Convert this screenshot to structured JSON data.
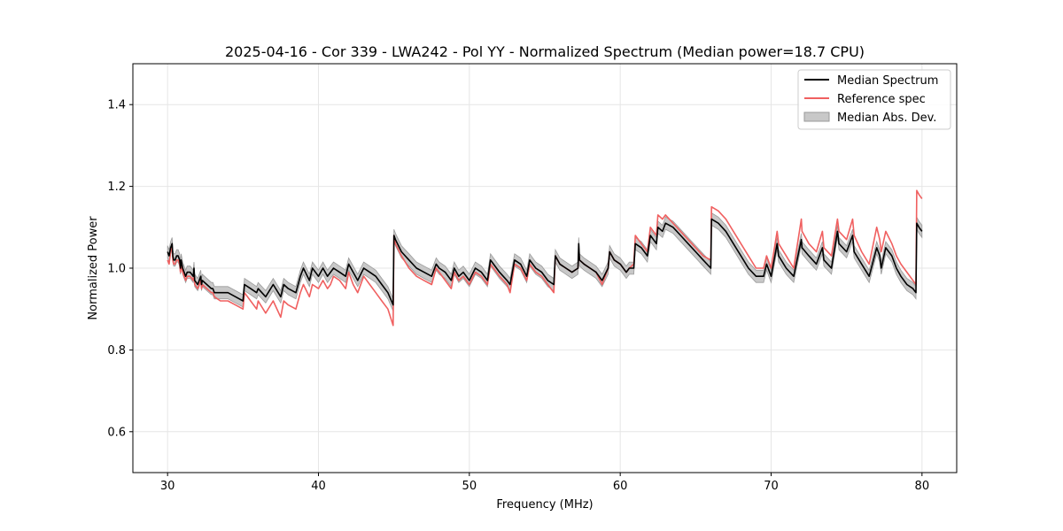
{
  "chart_data": {
    "type": "line",
    "title": "2025-04-16 - Cor 339 - LWA242 - Pol YY - Normalized Spectrum (Median power=18.7 CPU)",
    "xlabel": "Frequency (MHz)",
    "ylabel": "Normalized Power",
    "xlim": [
      27.7,
      82.3
    ],
    "ylim": [
      0.5,
      1.5
    ],
    "xticks": [
      30,
      40,
      50,
      60,
      70,
      80
    ],
    "yticks": [
      0.6,
      0.8,
      1.0,
      1.2,
      1.4
    ],
    "grid": true,
    "legend_position": "top-right",
    "legend": [
      "Median Spectrum",
      "Reference spec",
      "Median Abs. Dev."
    ],
    "colors": {
      "median": "#000000",
      "reference": "#f06060",
      "mad_fill": "#c8c8c8",
      "mad_edge": "#9a9a9a",
      "grid": "#e6e6e6"
    },
    "mad_halfwidth": 0.015,
    "series": [
      {
        "name": "Median Spectrum",
        "x": [
          30.0,
          30.1,
          30.2,
          30.3,
          30.35,
          30.4,
          30.5,
          30.6,
          30.7,
          30.8,
          30.85,
          30.9,
          31.0,
          31.1,
          31.2,
          31.3,
          31.5,
          31.7,
          31.75,
          31.8,
          32.0,
          32.2,
          32.25,
          32.3,
          32.6,
          32.9,
          33.0,
          33.1,
          33.5,
          34.0,
          34.5,
          35.0,
          35.1,
          35.5,
          35.9,
          36.0,
          36.5,
          37.0,
          37.5,
          37.7,
          38.0,
          38.5,
          38.8,
          39.0,
          39.4,
          39.6,
          40.0,
          40.3,
          40.6,
          40.8,
          41.0,
          41.4,
          41.8,
          42.0,
          42.3,
          42.6,
          43.0,
          43.4,
          43.8,
          44.2,
          44.6,
          44.95,
          45.0,
          45.1,
          45.5,
          46.0,
          46.5,
          47.0,
          47.5,
          47.8,
          48.0,
          48.4,
          48.8,
          49.0,
          49.3,
          49.6,
          50.0,
          50.4,
          50.8,
          51.2,
          51.4,
          51.6,
          52.0,
          52.5,
          52.7,
          53.0,
          53.4,
          53.8,
          54.0,
          54.4,
          54.8,
          55.2,
          55.6,
          55.7,
          56.0,
          56.4,
          56.8,
          57.2,
          57.25,
          57.3,
          57.6,
          58.0,
          58.4,
          58.8,
          59.2,
          59.3,
          59.6,
          60.0,
          60.4,
          60.6,
          60.9,
          61.0,
          61.4,
          61.8,
          62.0,
          62.4,
          62.5,
          62.8,
          63.0,
          63.5,
          64.0,
          64.5,
          65.0,
          65.5,
          66.0,
          66.05,
          66.5,
          67.0,
          67.5,
          68.0,
          68.5,
          69.0,
          69.5,
          69.7,
          70.0,
          70.4,
          70.5,
          71.0,
          71.5,
          72.0,
          72.05,
          72.5,
          73.0,
          73.4,
          73.5,
          74.0,
          74.4,
          74.5,
          75.0,
          75.4,
          75.5,
          76.0,
          76.5,
          77.0,
          77.2,
          77.3,
          77.6,
          78.0,
          78.3,
          78.6,
          79.0,
          79.4,
          79.6,
          79.65,
          79.8,
          80.0
        ],
        "values": [
          1.04,
          1.03,
          1.05,
          1.06,
          1.03,
          1.02,
          1.02,
          1.03,
          1.03,
          1.02,
          1.0,
          1.02,
          1.0,
          0.99,
          0.98,
          0.99,
          0.99,
          0.98,
          1.0,
          0.97,
          0.96,
          0.98,
          0.96,
          0.97,
          0.96,
          0.95,
          0.95,
          0.94,
          0.94,
          0.94,
          0.93,
          0.92,
          0.96,
          0.95,
          0.94,
          0.95,
          0.93,
          0.96,
          0.93,
          0.96,
          0.95,
          0.94,
          0.98,
          1.0,
          0.97,
          1.0,
          0.98,
          1.0,
          0.98,
          0.99,
          1.0,
          0.99,
          0.98,
          1.01,
          0.99,
          0.97,
          1.0,
          0.99,
          0.98,
          0.96,
          0.94,
          0.91,
          1.08,
          1.07,
          1.04,
          1.02,
          1.0,
          0.99,
          0.98,
          1.01,
          1.0,
          0.99,
          0.97,
          1.0,
          0.98,
          0.99,
          0.97,
          1.0,
          0.99,
          0.97,
          1.02,
          1.01,
          0.99,
          0.97,
          0.96,
          1.02,
          1.01,
          0.98,
          1.02,
          1.0,
          0.99,
          0.97,
          0.96,
          1.03,
          1.01,
          1.0,
          0.99,
          1.0,
          1.06,
          1.02,
          1.01,
          1.0,
          0.99,
          0.97,
          1.0,
          1.04,
          1.02,
          1.01,
          0.99,
          1.0,
          1.0,
          1.06,
          1.05,
          1.03,
          1.08,
          1.06,
          1.1,
          1.09,
          1.11,
          1.1,
          1.08,
          1.06,
          1.04,
          1.02,
          1.0,
          1.12,
          1.11,
          1.09,
          1.06,
          1.03,
          1.0,
          0.98,
          0.98,
          1.01,
          0.98,
          1.06,
          1.03,
          1.0,
          0.98,
          1.07,
          1.05,
          1.03,
          1.01,
          1.05,
          1.02,
          1.0,
          1.09,
          1.06,
          1.04,
          1.08,
          1.04,
          1.01,
          0.98,
          1.05,
          1.03,
          1.0,
          1.05,
          1.03,
          1.0,
          0.98,
          0.96,
          0.95,
          0.94,
          1.11,
          1.1,
          1.09
        ]
      },
      {
        "name": "Reference spec",
        "x": [
          30.0,
          30.1,
          30.2,
          30.3,
          30.35,
          30.4,
          30.5,
          30.6,
          30.7,
          30.8,
          30.85,
          30.9,
          31.0,
          31.1,
          31.2,
          31.3,
          31.5,
          31.7,
          31.75,
          31.8,
          32.0,
          32.2,
          32.25,
          32.3,
          32.6,
          32.9,
          33.0,
          33.1,
          33.5,
          34.0,
          34.5,
          35.0,
          35.1,
          35.5,
          35.9,
          36.0,
          36.5,
          37.0,
          37.5,
          37.7,
          38.0,
          38.5,
          38.8,
          39.0,
          39.4,
          39.6,
          40.0,
          40.3,
          40.6,
          40.8,
          41.0,
          41.4,
          41.8,
          42.0,
          42.3,
          42.6,
          43.0,
          43.4,
          43.8,
          44.2,
          44.6,
          44.95,
          45.0,
          45.1,
          45.5,
          46.0,
          46.5,
          47.0,
          47.5,
          47.8,
          48.0,
          48.4,
          48.8,
          49.0,
          49.3,
          49.6,
          50.0,
          50.4,
          50.8,
          51.2,
          51.4,
          51.6,
          52.0,
          52.5,
          52.7,
          53.0,
          53.4,
          53.8,
          54.0,
          54.4,
          54.8,
          55.2,
          55.6,
          55.7,
          56.0,
          56.4,
          56.8,
          57.2,
          57.25,
          57.3,
          57.6,
          58.0,
          58.4,
          58.8,
          59.2,
          59.3,
          59.6,
          60.0,
          60.4,
          60.6,
          60.9,
          61.0,
          61.4,
          61.8,
          62.0,
          62.4,
          62.5,
          62.8,
          63.0,
          63.5,
          64.0,
          64.5,
          65.0,
          65.5,
          66.0,
          66.05,
          66.5,
          67.0,
          67.5,
          68.0,
          68.5,
          69.0,
          69.5,
          69.7,
          70.0,
          70.4,
          70.5,
          71.0,
          71.5,
          72.0,
          72.05,
          72.5,
          73.0,
          73.4,
          73.5,
          74.0,
          74.4,
          74.5,
          75.0,
          75.4,
          75.5,
          76.0,
          76.5,
          77.0,
          77.2,
          77.3,
          77.6,
          78.0,
          78.3,
          78.6,
          79.0,
          79.4,
          79.6,
          79.65,
          79.8,
          80.0
        ],
        "values": [
          1.02,
          1.01,
          1.04,
          1.05,
          1.02,
          1.01,
          1.01,
          1.02,
          1.02,
          1.01,
          0.99,
          1.01,
          0.99,
          0.98,
          0.97,
          0.98,
          0.98,
          0.97,
          0.99,
          0.96,
          0.95,
          0.97,
          0.95,
          0.96,
          0.95,
          0.94,
          0.94,
          0.93,
          0.92,
          0.92,
          0.91,
          0.9,
          0.94,
          0.92,
          0.9,
          0.92,
          0.89,
          0.92,
          0.88,
          0.92,
          0.91,
          0.9,
          0.94,
          0.96,
          0.93,
          0.96,
          0.95,
          0.97,
          0.95,
          0.96,
          0.98,
          0.97,
          0.95,
          0.99,
          0.96,
          0.94,
          0.98,
          0.96,
          0.94,
          0.92,
          0.9,
          0.86,
          1.08,
          1.06,
          1.03,
          1.0,
          0.98,
          0.97,
          0.96,
          1.0,
          0.99,
          0.97,
          0.95,
          0.99,
          0.97,
          0.98,
          0.96,
          0.99,
          0.98,
          0.96,
          1.01,
          1.0,
          0.98,
          0.96,
          0.94,
          1.01,
          1.0,
          0.97,
          1.01,
          0.99,
          0.98,
          0.96,
          0.94,
          1.03,
          1.01,
          1.0,
          0.99,
          1.0,
          1.04,
          1.02,
          1.01,
          1.0,
          0.99,
          0.96,
          1.0,
          1.04,
          1.02,
          1.01,
          0.99,
          1.0,
          1.01,
          1.08,
          1.06,
          1.04,
          1.1,
          1.08,
          1.13,
          1.12,
          1.13,
          1.11,
          1.09,
          1.07,
          1.05,
          1.03,
          1.02,
          1.15,
          1.14,
          1.12,
          1.09,
          1.06,
          1.03,
          1.0,
          1.0,
          1.03,
          1.0,
          1.09,
          1.06,
          1.03,
          1.0,
          1.12,
          1.09,
          1.06,
          1.04,
          1.09,
          1.05,
          1.03,
          1.12,
          1.09,
          1.07,
          1.12,
          1.08,
          1.04,
          1.01,
          1.1,
          1.07,
          1.04,
          1.09,
          1.06,
          1.03,
          1.01,
          0.99,
          0.97,
          0.96,
          1.19,
          1.18,
          1.17
        ]
      }
    ]
  }
}
